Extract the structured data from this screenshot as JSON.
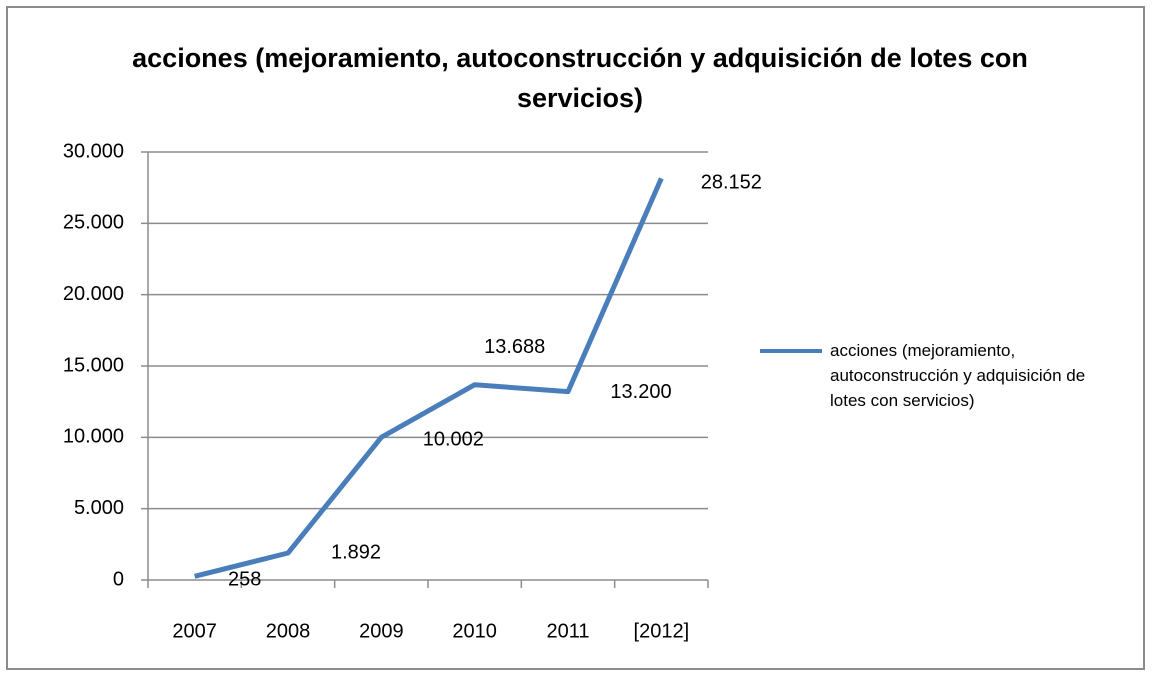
{
  "chart_data": {
    "type": "line",
    "title": "acciones (mejoramiento,  autoconstrucción y adquisición de lotes con servicios)",
    "categories": [
      "2007",
      "2008",
      "2009",
      "2010",
      "2011",
      "[2012]"
    ],
    "series": [
      {
        "name": "acciones (mejoramiento, autoconstrucción y adquisición de lotes con servicios)",
        "color": "#4a7ebb",
        "values": [
          258,
          1892,
          10002,
          13688,
          13200,
          28152
        ],
        "value_labels": [
          "258",
          "1.892",
          "10.002",
          "13.688",
          "13.200",
          "28.152"
        ]
      }
    ],
    "ylim": [
      0,
      30000
    ],
    "yticks": [
      0,
      {
        "value": 5000,
        "label": "5.000"
      },
      {
        "value": 10000,
        "label": "10.000"
      },
      {
        "value": 15000,
        "label": "15.000"
      },
      {
        "value": 20000,
        "label": "20.000"
      },
      {
        "value": 25000,
        "label": "25.000"
      },
      {
        "value": 30000,
        "label": "30.000"
      }
    ],
    "grid": true,
    "legend": "right"
  }
}
